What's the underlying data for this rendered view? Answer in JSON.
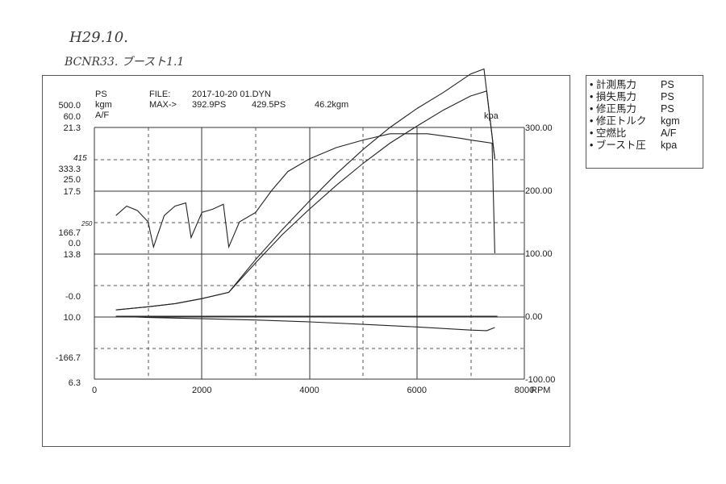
{
  "handwritten": {
    "date": "H29.10.",
    "car": "BCNR33. ブースト1.1",
    "margin_note_1": "415",
    "margin_note_2": "250"
  },
  "header": {
    "units_left": [
      "PS",
      "kgm",
      "A/F"
    ],
    "file_label": "FILE:",
    "file_name": "2017-10-20  01.DYN",
    "max_label": "MAX->",
    "max_values": [
      "392.9PS",
      "429.5PS",
      "46.2kgm"
    ],
    "right_unit": "kpa"
  },
  "legend": [
    {
      "label": "計測馬力",
      "unit": "PS"
    },
    {
      "label": "損失馬力",
      "unit": "PS"
    },
    {
      "label": "修正馬力",
      "unit": "PS"
    },
    {
      "label": "修正トルク",
      "unit": "kgm"
    },
    {
      "label": "空燃比",
      "unit": "A/F"
    },
    {
      "label": "ブースト圧",
      "unit": "kpa"
    }
  ],
  "chart_data": {
    "type": "line",
    "xlabel": "RPM",
    "xlim": [
      0,
      8000
    ],
    "x_ticks": [
      "0",
      "2000",
      "4000",
      "6000",
      "8000"
    ],
    "left_scale_rows": [
      [
        "500.0",
        "60.0",
        "21.3"
      ],
      [
        "333.3",
        "25.0",
        "17.5"
      ],
      [
        "166.7",
        "0.0",
        "13.8"
      ],
      [
        "-0.0"
      ],
      [
        "10.0"
      ],
      [
        "-166.7"
      ],
      [
        "6.3"
      ]
    ],
    "right_ticks": [
      "300.00",
      "200.00",
      "100.00",
      "0.00",
      "-100.00"
    ],
    "right_ylim": [
      -100,
      300
    ],
    "grid": true,
    "series": [
      {
        "name": "計測馬力",
        "unit": "PS",
        "x": [
          400,
          1000,
          1500,
          2000,
          2500,
          3000,
          3500,
          4000,
          4500,
          5000,
          5500,
          6000,
          6500,
          7000,
          7300,
          7450
        ],
        "y": [
          10,
          15,
          20,
          28,
          38,
          85,
          130,
          170,
          208,
          243,
          275,
          302,
          328,
          350,
          358,
          250
        ]
      },
      {
        "name": "修正馬力",
        "unit": "PS",
        "x": [
          400,
          1000,
          1500,
          2000,
          2500,
          3000,
          3500,
          4000,
          4500,
          5000,
          5500,
          6000,
          6500,
          7000,
          7250,
          7450
        ],
        "y": [
          10,
          15,
          20,
          28,
          38,
          90,
          138,
          183,
          226,
          265,
          300,
          330,
          356,
          385,
          392.9,
          250
        ]
      },
      {
        "name": "ブースト圧",
        "unit": "kpa",
        "x": [
          400,
          600,
          800,
          1000,
          1100,
          1300,
          1500,
          1700,
          1800,
          2000,
          2200,
          2400,
          2500,
          2700,
          3000,
          3300,
          3600,
          4000,
          4500,
          5000,
          5500,
          5800,
          6200,
          6800,
          7000,
          7400,
          7450
        ],
        "y": [
          160,
          175,
          168,
          150,
          110,
          160,
          175,
          180,
          125,
          165,
          170,
          178,
          110,
          150,
          165,
          200,
          230,
          250,
          268,
          280,
          290,
          290,
          290,
          283,
          280,
          275,
          100
        ]
      },
      {
        "name": "損失馬力",
        "unit": "PS",
        "x": [
          400,
          1000,
          2000,
          3000,
          4000,
          5000,
          6000,
          7000,
          7500
        ],
        "y": [
          0,
          0,
          0,
          0,
          0,
          0,
          0,
          0,
          0
        ]
      },
      {
        "name": "空燃比",
        "unit": "A/F",
        "x": [
          400,
          1000,
          2000,
          3000,
          4000,
          5000,
          6000,
          7000,
          7300,
          7450
        ],
        "y": [
          0,
          -2,
          -4,
          -6,
          -9,
          -13,
          -17,
          -22,
          -23,
          -18
        ]
      }
    ]
  }
}
